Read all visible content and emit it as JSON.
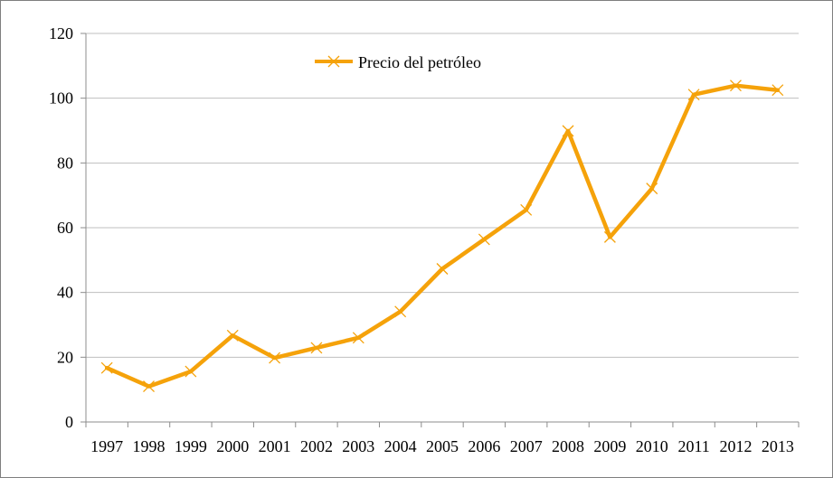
{
  "chart_data": {
    "type": "line",
    "categories": [
      "1997",
      "1998",
      "1999",
      "2000",
      "2001",
      "2002",
      "2003",
      "2004",
      "2005",
      "2006",
      "2007",
      "2008",
      "2009",
      "2010",
      "2011",
      "2012",
      "2013"
    ],
    "series": [
      {
        "name": "Precio del petróleo",
        "color": "#f5a20a",
        "marker": "x",
        "values": [
          16.7,
          11.0,
          15.6,
          26.7,
          19.8,
          22.9,
          26.0,
          34.1,
          47.3,
          56.4,
          65.5,
          89.9,
          57.1,
          72.1,
          101.1,
          103.9,
          102.5
        ]
      }
    ],
    "ylim": [
      0,
      120
    ],
    "yticks": [
      "0",
      "20",
      "40",
      "60",
      "80",
      "100",
      "120"
    ],
    "grid": "horizontal",
    "legend": "top-center"
  }
}
